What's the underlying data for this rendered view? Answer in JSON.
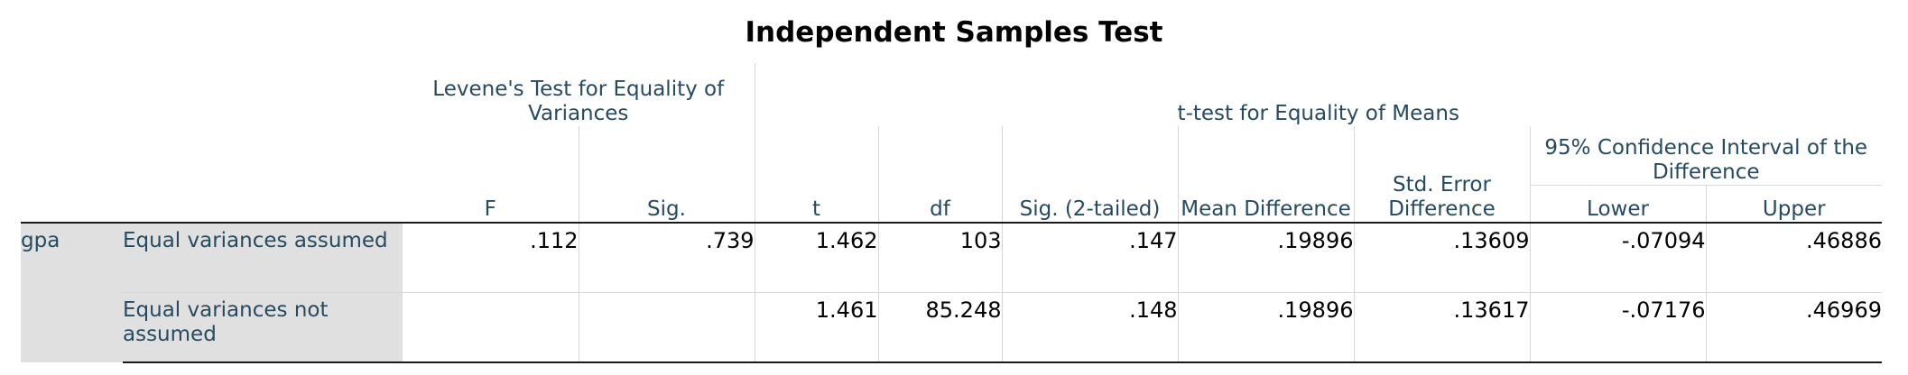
{
  "title": "Independent Samples Test",
  "header": {
    "levene_group": "Levene's Test for Equality of Variances",
    "ttest_group": "t-test for Equality of Means",
    "ci_group": "95% Confidence Interval of the Difference",
    "columns": {
      "F": "F",
      "sig": "Sig.",
      "t": "t",
      "df": "df",
      "sig2": "Sig. (2-tailed)",
      "mean_diff": "Mean Difference",
      "se_diff": "Std. Error Difference",
      "lower": "Lower",
      "upper": "Upper"
    }
  },
  "variable": "gpa",
  "rows": [
    {
      "label": "Equal variances assumed",
      "F": ".112",
      "sig": ".739",
      "t": "1.462",
      "df": "103",
      "sig2": ".147",
      "mean_diff": ".19896",
      "se_diff": ".13609",
      "lower": "-.07094",
      "upper": ".46886"
    },
    {
      "label": "Equal variances not assumed",
      "F": "",
      "sig": "",
      "t": "1.461",
      "df": "85.248",
      "sig2": ".148",
      "mean_diff": ".19896",
      "se_diff": ".13617",
      "lower": "-.07176",
      "upper": ".46969"
    }
  ]
}
